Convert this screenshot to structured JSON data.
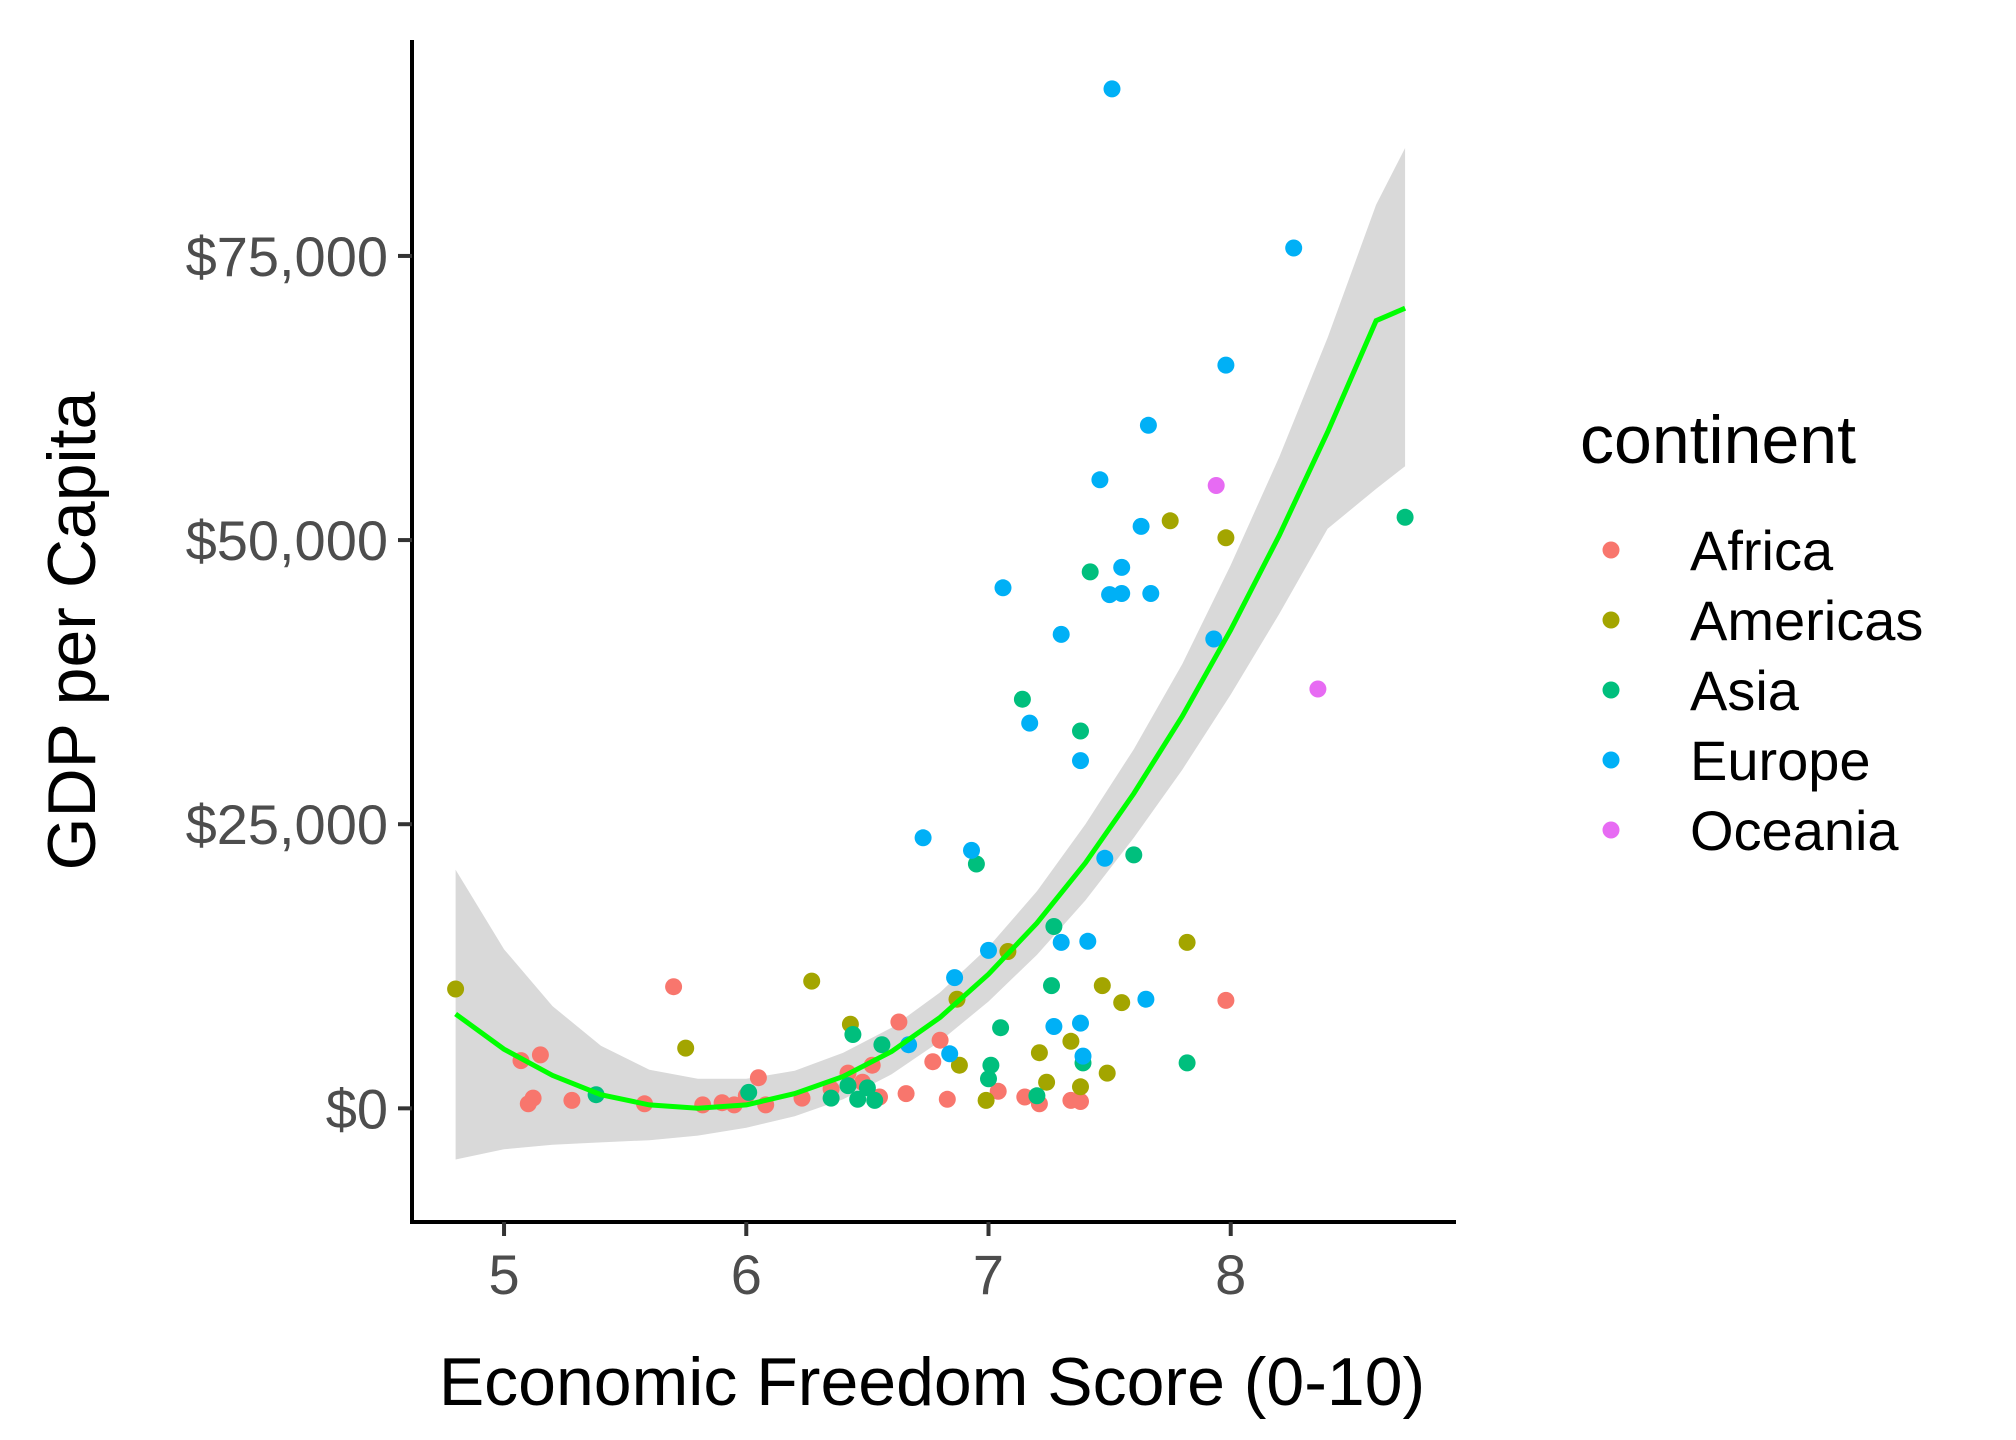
{
  "chart_data": {
    "type": "scatter",
    "title": "",
    "xlabel": "Economic Freedom Score (0-10)",
    "ylabel": "GDP per Capita",
    "xlim": [
      4.62,
      8.93
    ],
    "ylim": [
      -10000,
      94000
    ],
    "x_ticks": [
      5,
      6,
      7,
      8
    ],
    "x_tick_labels": [
      "5",
      "6",
      "7",
      "8"
    ],
    "y_ticks": [
      0,
      25000,
      50000,
      75000
    ],
    "y_tick_labels": [
      "$0",
      "$25,000",
      "$50,000",
      "$75,000"
    ],
    "grid": false,
    "legend": {
      "title": "continent",
      "placement": "right",
      "entries": [
        {
          "label": "Africa",
          "color": "#F8766D"
        },
        {
          "label": "Americas",
          "color": "#A3A500"
        },
        {
          "label": "Asia",
          "color": "#00BF7D"
        },
        {
          "label": "Europe",
          "color": "#00B0F6"
        },
        {
          "label": "Oceania",
          "color": "#E76BF3"
        }
      ]
    },
    "trend": {
      "type": "quadratic fit with confidence band",
      "color": "#00FF00",
      "band_color": "#d9d9d9",
      "x": [
        4.8,
        5.0,
        5.2,
        5.4,
        5.6,
        5.8,
        6.0,
        6.2,
        6.4,
        6.6,
        6.8,
        7.0,
        7.2,
        7.4,
        7.6,
        7.8,
        8.0,
        8.2,
        8.4,
        8.6,
        8.72
      ],
      "y": [
        8300,
        5200,
        2900,
        1200,
        300,
        0,
        300,
        1300,
        2800,
        5000,
        8000,
        11800,
        16300,
        21600,
        27700,
        34500,
        42100,
        50400,
        59500,
        69300,
        70400
      ],
      "lower": [
        -4500,
        -3600,
        -3200,
        -3000,
        -2800,
        -2400,
        -1700,
        -700,
        800,
        3000,
        5900,
        9400,
        13500,
        18300,
        23800,
        29800,
        36400,
        43500,
        51000,
        54500,
        56500
      ],
      "upper": [
        21000,
        14000,
        9000,
        5500,
        3400,
        2600,
        2600,
        3300,
        4900,
        7100,
        10200,
        14200,
        19100,
        25000,
        31600,
        39100,
        47800,
        57300,
        67800,
        79500,
        84500
      ]
    },
    "series": [
      {
        "name": "Africa",
        "color": "#F8766D",
        "points": [
          [
            5.07,
            4200
          ],
          [
            5.1,
            400
          ],
          [
            5.12,
            900
          ],
          [
            5.15,
            4700
          ],
          [
            5.28,
            700
          ],
          [
            5.58,
            400
          ],
          [
            5.7,
            10700
          ],
          [
            5.82,
            300
          ],
          [
            5.9,
            500
          ],
          [
            5.95,
            300
          ],
          [
            6.0,
            1100
          ],
          [
            6.05,
            2700
          ],
          [
            6.08,
            300
          ],
          [
            6.23,
            900
          ],
          [
            6.35,
            1700
          ],
          [
            6.42,
            3100
          ],
          [
            6.48,
            2300
          ],
          [
            6.52,
            3800
          ],
          [
            6.55,
            1000
          ],
          [
            6.63,
            7600
          ],
          [
            6.66,
            1300
          ],
          [
            6.77,
            4100
          ],
          [
            6.8,
            6000
          ],
          [
            6.83,
            800
          ],
          [
            7.04,
            1500
          ],
          [
            7.15,
            1000
          ],
          [
            7.21,
            400
          ],
          [
            7.34,
            700
          ],
          [
            7.38,
            600
          ],
          [
            7.98,
            9500
          ]
        ]
      },
      {
        "name": "Americas",
        "color": "#A3A500",
        "points": [
          [
            4.8,
            10500
          ],
          [
            5.75,
            5300
          ],
          [
            6.27,
            11200
          ],
          [
            6.43,
            7400
          ],
          [
            6.87,
            9600
          ],
          [
            6.88,
            3800
          ],
          [
            6.99,
            700
          ],
          [
            7.08,
            13800
          ],
          [
            7.21,
            4900
          ],
          [
            7.24,
            2300
          ],
          [
            7.34,
            5900
          ],
          [
            7.38,
            1900
          ],
          [
            7.47,
            10800
          ],
          [
            7.49,
            3100
          ],
          [
            7.55,
            9300
          ],
          [
            7.75,
            51700
          ],
          [
            7.82,
            14600
          ],
          [
            7.98,
            50200
          ]
        ]
      },
      {
        "name": "Asia",
        "color": "#00BF7D",
        "points": [
          [
            5.38,
            1200
          ],
          [
            6.01,
            1400
          ],
          [
            6.35,
            900
          ],
          [
            6.42,
            2000
          ],
          [
            6.44,
            6500
          ],
          [
            6.46,
            800
          ],
          [
            6.5,
            1800
          ],
          [
            6.53,
            700
          ],
          [
            6.56,
            5600
          ],
          [
            6.95,
            21500
          ],
          [
            7.0,
            2600
          ],
          [
            7.01,
            3800
          ],
          [
            7.05,
            7100
          ],
          [
            7.14,
            36000
          ],
          [
            7.2,
            1100
          ],
          [
            7.26,
            10800
          ],
          [
            7.27,
            16000
          ],
          [
            7.38,
            33200
          ],
          [
            7.39,
            4000
          ],
          [
            7.42,
            47200
          ],
          [
            7.6,
            22300
          ],
          [
            7.82,
            4000
          ],
          [
            8.72,
            52000
          ]
        ]
      },
      {
        "name": "Europe",
        "color": "#00B0F6",
        "points": [
          [
            6.67,
            5600
          ],
          [
            6.73,
            23800
          ],
          [
            6.84,
            4800
          ],
          [
            6.86,
            11500
          ],
          [
            6.93,
            22700
          ],
          [
            7.0,
            13900
          ],
          [
            7.06,
            45800
          ],
          [
            7.17,
            33900
          ],
          [
            7.27,
            7200
          ],
          [
            7.3,
            41700
          ],
          [
            7.3,
            14600
          ],
          [
            7.38,
            30600
          ],
          [
            7.38,
            7500
          ],
          [
            7.39,
            4600
          ],
          [
            7.41,
            14700
          ],
          [
            7.46,
            55300
          ],
          [
            7.48,
            22000
          ],
          [
            7.5,
            45200
          ],
          [
            7.51,
            89700
          ],
          [
            7.55,
            45300
          ],
          [
            7.55,
            47600
          ],
          [
            7.63,
            51200
          ],
          [
            7.65,
            9600
          ],
          [
            7.66,
            60100
          ],
          [
            7.67,
            45300
          ],
          [
            7.93,
            41300
          ],
          [
            7.98,
            65400
          ],
          [
            8.26,
            75700
          ]
        ]
      },
      {
        "name": "Oceania",
        "color": "#E76BF3",
        "points": [
          [
            7.94,
            54800
          ],
          [
            8.36,
            36900
          ]
        ]
      }
    ]
  }
}
